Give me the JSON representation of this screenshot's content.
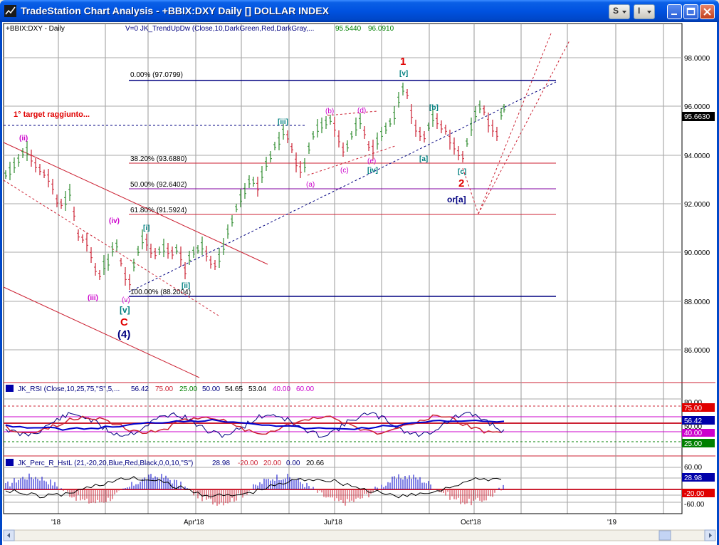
{
  "window": {
    "title": "TradeStation Chart Analysis - +BBIX:DXY Daily [] DOLLAR INDEX",
    "style_button_label": "S",
    "format_button_label": "I",
    "minimize_icon": "minimize-icon",
    "maximize_icon": "maximize-icon",
    "close_icon": "close-icon"
  },
  "main_panel": {
    "symbol_label": "+BBIX:DXY - Daily",
    "indicator_label": "V=0  JK_TrendUpDw (Close,10,DarkGreen,Red,DarkGray,...",
    "indicator_value_1": "95.5440",
    "indicator_value_2": "96.0910",
    "price_axis_labels": [
      "98.0000",
      "96.0000",
      "94.0000",
      "92.0000",
      "90.0000",
      "88.0000",
      "86.0000"
    ],
    "last_price": "95.6630",
    "target_note": "1° target raggiunto...",
    "fib_levels": [
      {
        "label": "0.00% (97.0799)",
        "value": 97.0799
      },
      {
        "label": "38.20% (93.6880)",
        "value": 93.688
      },
      {
        "label": "50.00% (92.6402)",
        "value": 92.6402
      },
      {
        "label": "61.80% (91.5924)",
        "value": 91.5924
      },
      {
        "label": "100.00% (88.2004)",
        "value": 88.2004
      }
    ],
    "wave_labels": {
      "w1": "1",
      "w2": "2",
      "wC": "C",
      "w4": "(4)",
      "v_low": "[v]",
      "v_small": "(v)",
      "ii": "(ii)",
      "iii": "(iii)",
      "iv": "(iv)",
      "i_box": "[i]",
      "ii_box": "[ii]",
      "iii_box": "[iii]",
      "iv_box": "[iv]",
      "v_top": "[v]",
      "a": "(a)",
      "b": "(b)",
      "c": "(c)",
      "d": "(d)",
      "e": "(e)",
      "a_box": "[a]",
      "b_box": "[b]",
      "c_box": "[c]",
      "or_a": "or[a]"
    }
  },
  "rsi_panel": {
    "label_prefix": "JK_RSI (Close,10,25,75,\"S\",5,...",
    "values": [
      "56.42",
      "75.00",
      "25.00",
      "50.00",
      "54.65",
      "53.04",
      "40.00",
      "60.00"
    ],
    "axis_labels": [
      "80.00",
      "75.00",
      "56.42",
      "50.00",
      "40.00",
      "25.00"
    ]
  },
  "percr_panel": {
    "label_prefix": "JK_Perc_R_HstL (21,-20,20,Blue,Red,Black,0,0,10,\"S\")",
    "values": [
      "28.98",
      "-20.00",
      "20.00",
      "0.00",
      "20.66"
    ],
    "axis_labels": [
      "60.00",
      "28.98",
      "-20.00",
      "-60.00"
    ]
  },
  "time_axis": {
    "labels": [
      "'18",
      "Apr'18",
      "Jul'18",
      "Oct'18",
      "'19"
    ]
  },
  "colors": {
    "up_bar": "#2E8B2E",
    "down_bar": "#CC2233",
    "fib_line": "#CC2233",
    "navy": "#000080",
    "wave_red": "#E00000",
    "wave_magenta": "#CC00CC",
    "wave_teal": "#008080"
  }
}
